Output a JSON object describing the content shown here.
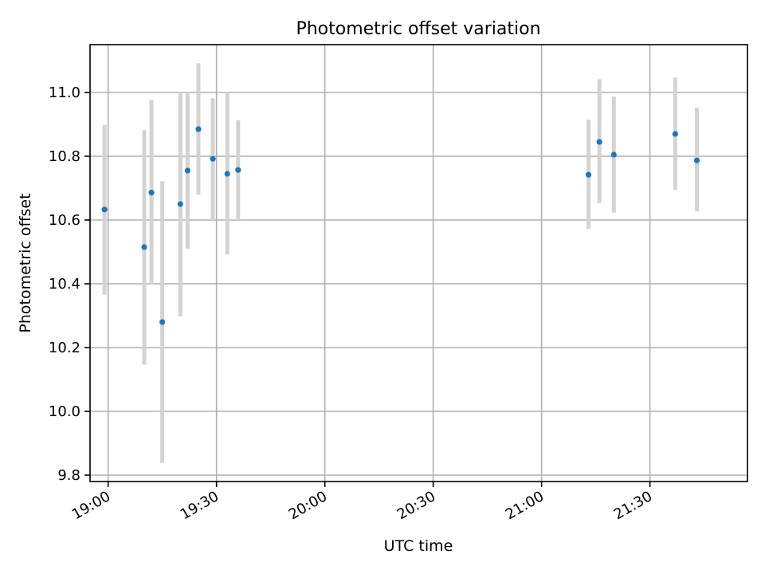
{
  "chart_data": {
    "type": "scatter",
    "title": "Photometric offset variation",
    "xlabel": "UTC time",
    "ylabel": "Photometric offset",
    "x_is_time": true,
    "xlim": [
      "18:55",
      "21:57"
    ],
    "ylim": [
      9.78,
      11.15
    ],
    "xticks": [
      "19:00",
      "19:30",
      "20:00",
      "20:30",
      "21:00",
      "21:30"
    ],
    "yticks": [
      9.8,
      10.0,
      10.2,
      10.4,
      10.6,
      10.8,
      11.0
    ],
    "ytick_labels": [
      "9.8",
      "10.0",
      "10.2",
      "10.4",
      "10.6",
      "10.8",
      "11.0"
    ],
    "grid": true,
    "colors": {
      "point": "#1f77b4",
      "errorbar": "#d3d3d3",
      "grid": "#b0b0b0"
    },
    "points": [
      {
        "x": "18:59",
        "y": 10.633,
        "low": 10.366,
        "high": 10.898
      },
      {
        "x": "19:10",
        "y": 10.515,
        "low": 10.147,
        "high": 10.882
      },
      {
        "x": "19:12",
        "y": 10.686,
        "low": 10.397,
        "high": 10.977
      },
      {
        "x": "19:15",
        "y": 10.28,
        "low": 9.838,
        "high": 10.722
      },
      {
        "x": "19:20",
        "y": 10.65,
        "low": 10.298,
        "high": 11.0
      },
      {
        "x": "19:22",
        "y": 10.755,
        "low": 10.51,
        "high": 11.0
      },
      {
        "x": "19:25",
        "y": 10.885,
        "low": 10.68,
        "high": 11.092
      },
      {
        "x": "19:29",
        "y": 10.792,
        "low": 10.6,
        "high": 10.982
      },
      {
        "x": "19:33",
        "y": 10.745,
        "low": 10.492,
        "high": 11.0
      },
      {
        "x": "19:36",
        "y": 10.757,
        "low": 10.6,
        "high": 10.913
      },
      {
        "x": "21:13",
        "y": 10.742,
        "low": 10.572,
        "high": 10.915
      },
      {
        "x": "21:16",
        "y": 10.845,
        "low": 10.653,
        "high": 11.042
      },
      {
        "x": "21:20",
        "y": 10.805,
        "low": 10.623,
        "high": 10.987
      },
      {
        "x": "21:37",
        "y": 10.87,
        "low": 10.695,
        "high": 11.047
      },
      {
        "x": "21:43",
        "y": 10.787,
        "low": 10.627,
        "high": 10.952
      }
    ]
  }
}
